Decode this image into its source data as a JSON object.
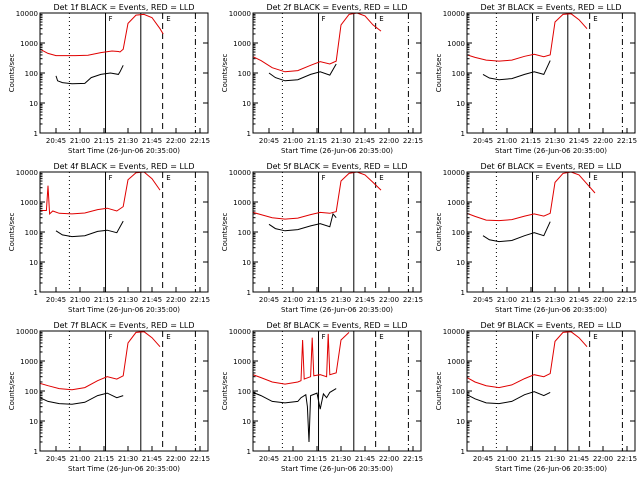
{
  "colors": {
    "events": "#000000",
    "lld": "#e00000",
    "axes": "#000000",
    "background": "#ffffff"
  },
  "chart_data": [
    {
      "type": "line",
      "title": "Det 1f BLACK = Events, RED = LLD",
      "xlabel": "Start Time (26-Jun-06 20:35:00)",
      "ylabel": "Counts/sec",
      "x_ticks": [
        "20:45",
        "21:00",
        "21:15",
        "21:30",
        "21:45",
        "22:00",
        "22:15"
      ],
      "y_ticks": [
        "1",
        "10",
        "100",
        "1000",
        "10000"
      ],
      "ylim": [
        1,
        10000
      ],
      "yscale": "log",
      "xlim_minutes": [
        0,
        105
      ],
      "markers": [
        "F",
        "E"
      ],
      "series": [
        {
          "color": "red",
          "x": [
            0,
            5,
            10,
            16,
            22,
            30,
            38,
            45,
            49,
            50,
            52,
            55,
            60,
            65,
            70,
            75,
            77
          ],
          "y": [
            620,
            450,
            380,
            380,
            380,
            390,
            480,
            540,
            520,
            500,
            620,
            4500,
            8500,
            9000,
            7000,
            3000,
            2000
          ]
        },
        {
          "color": "black",
          "x": [
            10,
            11,
            14,
            20,
            28,
            32,
            38,
            44,
            49,
            50,
            52
          ],
          "y": [
            80,
            55,
            48,
            44,
            45,
            70,
            90,
            100,
            90,
            110,
            180
          ]
        }
      ]
    },
    {
      "type": "line",
      "title": "Det 2f BLACK = Events, RED = LLD",
      "xlabel": "Start Time (26-Jun-06 20:35:00)",
      "ylabel": "Counts/sec",
      "x_ticks": [
        "20:45",
        "21:00",
        "21:15",
        "21:30",
        "21:45",
        "22:00",
        "22:15"
      ],
      "y_ticks": [
        "1",
        "10",
        "100",
        "1000",
        "10000"
      ],
      "ylim": [
        1,
        10000
      ],
      "yscale": "log",
      "xlim_minutes": [
        0,
        105
      ],
      "markers": [
        "F",
        "E"
      ],
      "series": [
        {
          "color": "red",
          "x": [
            0,
            5,
            12,
            20,
            28,
            36,
            42,
            48,
            52,
            55,
            60,
            65,
            70,
            75,
            80
          ],
          "y": [
            350,
            260,
            150,
            110,
            120,
            180,
            240,
            200,
            250,
            4000,
            9000,
            10000,
            8000,
            4000,
            2500
          ]
        },
        {
          "color": "black",
          "x": [
            10,
            14,
            20,
            28,
            36,
            42,
            48,
            52
          ],
          "y": [
            100,
            70,
            55,
            60,
            90,
            110,
            85,
            200
          ]
        }
      ]
    },
    {
      "type": "line",
      "title": "Det 3f BLACK = Events, RED = LLD",
      "xlabel": "Start Time (26-Jun-06 20:35:00)",
      "ylabel": "Counts/sec",
      "x_ticks": [
        "20:45",
        "21:00",
        "21:15",
        "21:30",
        "21:45",
        "22:00",
        "22:15"
      ],
      "y_ticks": [
        "1",
        "10",
        "100",
        "1000",
        "10000"
      ],
      "ylim": [
        1,
        10000
      ],
      "yscale": "log",
      "xlim_minutes": [
        0,
        105
      ],
      "markers": [
        "F",
        "E"
      ],
      "series": [
        {
          "color": "red",
          "x": [
            0,
            5,
            12,
            20,
            28,
            36,
            42,
            48,
            52,
            55,
            60,
            65,
            70,
            75
          ],
          "y": [
            400,
            330,
            270,
            250,
            270,
            360,
            420,
            350,
            400,
            5000,
            9000,
            9500,
            6000,
            3000
          ]
        },
        {
          "color": "black",
          "x": [
            10,
            14,
            20,
            28,
            36,
            42,
            48,
            52
          ],
          "y": [
            90,
            68,
            60,
            65,
            90,
            110,
            90,
            260
          ]
        }
      ]
    },
    {
      "type": "line",
      "title": "Det 4f BLACK = Events, RED = LLD",
      "xlabel": "Start Time (26-Jun-06 20:35:00)",
      "ylabel": "Counts/sec",
      "x_ticks": [
        "20:45",
        "21:00",
        "21:15",
        "21:30",
        "21:45",
        "22:00",
        "22:15"
      ],
      "y_ticks": [
        "1",
        "10",
        "100",
        "1000",
        "10000"
      ],
      "ylim": [
        1,
        10000
      ],
      "yscale": "log",
      "xlim_minutes": [
        0,
        105
      ],
      "markers": [
        "F",
        "E"
      ],
      "series": [
        {
          "color": "red",
          "x": [
            0,
            4,
            5,
            6,
            8,
            12,
            20,
            28,
            36,
            42,
            48,
            52,
            55,
            60,
            65,
            70,
            75
          ],
          "y": [
            520,
            520,
            3500,
            400,
            500,
            420,
            400,
            430,
            560,
            620,
            500,
            700,
            5500,
            9500,
            10000,
            6000,
            2500
          ]
        },
        {
          "color": "black",
          "x": [
            10,
            14,
            20,
            28,
            36,
            42,
            48,
            52
          ],
          "y": [
            110,
            80,
            70,
            75,
            105,
            115,
            95,
            230
          ]
        }
      ]
    },
    {
      "type": "line",
      "title": "Det 5f BLACK = Events, RED = LLD",
      "xlabel": "Start Time (26-Jun-06 20:35:00)",
      "ylabel": "Counts/sec",
      "x_ticks": [
        "20:45",
        "21:00",
        "21:15",
        "21:30",
        "21:45",
        "22:00",
        "22:15"
      ],
      "y_ticks": [
        "1",
        "10",
        "100",
        "1000",
        "10000"
      ],
      "ylim": [
        1,
        10000
      ],
      "yscale": "log",
      "xlim_minutes": [
        0,
        105
      ],
      "markers": [
        "F",
        "E"
      ],
      "series": [
        {
          "color": "red",
          "x": [
            0,
            5,
            12,
            20,
            28,
            36,
            42,
            48,
            52,
            55,
            60,
            65,
            70,
            75,
            80
          ],
          "y": [
            450,
            380,
            300,
            270,
            290,
            380,
            450,
            420,
            480,
            5000,
            9000,
            10000,
            8000,
            4500,
            2500
          ]
        },
        {
          "color": "black",
          "x": [
            10,
            14,
            20,
            28,
            36,
            42,
            48,
            50,
            52
          ],
          "y": [
            180,
            130,
            110,
            120,
            160,
            190,
            150,
            400,
            300
          ]
        }
      ]
    },
    {
      "type": "line",
      "title": "Det 6f BLACK = Events, RED = LLD",
      "xlabel": "Start Time (26-Jun-06 20:35:00)",
      "ylabel": "Counts/sec",
      "x_ticks": [
        "20:45",
        "21:00",
        "21:15",
        "21:30",
        "21:45",
        "22:00",
        "22:15"
      ],
      "y_ticks": [
        "1",
        "10",
        "100",
        "1000",
        "10000"
      ],
      "ylim": [
        1,
        10000
      ],
      "yscale": "log",
      "xlim_minutes": [
        0,
        105
      ],
      "markers": [
        "F",
        "E"
      ],
      "series": [
        {
          "color": "red",
          "x": [
            0,
            5,
            12,
            20,
            28,
            36,
            42,
            48,
            52,
            55,
            60,
            65,
            70,
            75,
            80
          ],
          "y": [
            420,
            330,
            250,
            240,
            260,
            340,
            400,
            340,
            420,
            4500,
            9000,
            10000,
            8000,
            4000,
            2000
          ]
        },
        {
          "color": "black",
          "x": [
            10,
            14,
            20,
            28,
            36,
            42,
            48,
            52
          ],
          "y": [
            75,
            55,
            48,
            52,
            75,
            95,
            75,
            220
          ]
        }
      ]
    },
    {
      "type": "line",
      "title": "Det 7f BLACK = Events, RED = LLD",
      "xlabel": "Start Time (26-Jun-06 20:35:00)",
      "ylabel": "Counts/sec",
      "x_ticks": [
        "20:45",
        "21:00",
        "21:15",
        "21:30",
        "21:45",
        "22:00",
        "22:15"
      ],
      "y_ticks": [
        "1",
        "10",
        "100",
        "1000",
        "10000"
      ],
      "ylim": [
        1,
        10000
      ],
      "yscale": "log",
      "xlim_minutes": [
        0,
        105
      ],
      "markers": [
        "F",
        "E"
      ],
      "series": [
        {
          "color": "red",
          "x": [
            0,
            5,
            12,
            20,
            28,
            36,
            42,
            48,
            52,
            55,
            60,
            65,
            70,
            75
          ],
          "y": [
            180,
            150,
            120,
            110,
            130,
            220,
            300,
            250,
            320,
            4000,
            9000,
            9500,
            6000,
            3000
          ]
        },
        {
          "color": "black",
          "x": [
            0,
            5,
            12,
            20,
            28,
            36,
            42,
            48,
            52
          ],
          "y": [
            60,
            45,
            38,
            36,
            42,
            70,
            85,
            60,
            70
          ]
        }
      ]
    },
    {
      "type": "line",
      "title": "Det 8f BLACK = Events, RED = LLD",
      "xlabel": "Start Time (26-Jun-06 20:35:00)",
      "ylabel": "Counts/sec",
      "x_ticks": [
        "20:45",
        "21:00",
        "21:15",
        "21:30",
        "21:45",
        "22:00",
        "22:15"
      ],
      "y_ticks": [
        "1",
        "10",
        "100",
        "1000",
        "10000"
      ],
      "ylim": [
        1,
        10000
      ],
      "yscale": "log",
      "xlim_minutes": [
        0,
        105
      ],
      "markers": [
        "F",
        "E"
      ],
      "series": [
        {
          "color": "red",
          "x": [
            0,
            5,
            12,
            20,
            28,
            30,
            31,
            32,
            36,
            37,
            38,
            42,
            46,
            47,
            48,
            52,
            55,
            60
          ],
          "y": [
            350,
            280,
            200,
            170,
            200,
            220,
            5000,
            250,
            300,
            6000,
            320,
            350,
            300,
            8000,
            350,
            400,
            5000,
            9000
          ]
        },
        {
          "color": "black",
          "x": [
            0,
            5,
            12,
            20,
            28,
            30,
            33,
            34,
            35,
            36,
            40,
            42,
            44,
            46,
            48,
            52
          ],
          "y": [
            90,
            70,
            45,
            40,
            45,
            60,
            75,
            30,
            2,
            70,
            85,
            25,
            80,
            60,
            90,
            120
          ]
        }
      ]
    },
    {
      "type": "line",
      "title": "Det 9f BLACK = Events, RED = LLD",
      "xlabel": "Start Time (26-Jun-06 20:35:00)",
      "ylabel": "Counts/sec",
      "x_ticks": [
        "20:45",
        "21:00",
        "21:15",
        "21:30",
        "21:45",
        "22:00",
        "22:15"
      ],
      "y_ticks": [
        "1",
        "10",
        "100",
        "1000",
        "10000"
      ],
      "ylim": [
        1,
        10000
      ],
      "yscale": "log",
      "xlim_minutes": [
        0,
        105
      ],
      "markers": [
        "F",
        "E"
      ],
      "series": [
        {
          "color": "red",
          "x": [
            0,
            5,
            12,
            20,
            28,
            36,
            42,
            48,
            52,
            55,
            60,
            65,
            70,
            75
          ],
          "y": [
            280,
            200,
            150,
            130,
            160,
            260,
            350,
            300,
            380,
            4500,
            9000,
            9500,
            6000,
            3000
          ]
        },
        {
          "color": "black",
          "x": [
            0,
            5,
            12,
            20,
            28,
            36,
            42,
            48,
            52
          ],
          "y": [
            75,
            55,
            40,
            38,
            45,
            75,
            95,
            70,
            90
          ]
        }
      ]
    }
  ]
}
